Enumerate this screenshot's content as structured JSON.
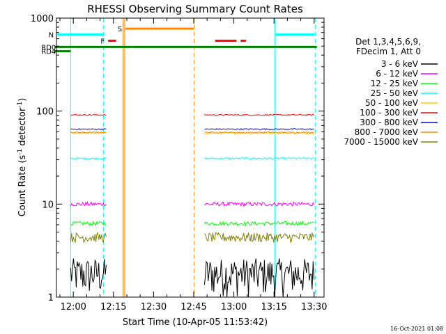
{
  "chart_data": {
    "type": "line",
    "title": "RHESSI Observing Summary Count Rates",
    "xlabel": "Start Time (10-Apr-05 11:53:42)",
    "ylabel_main": "Count Rate (s",
    "ylabel_sup": "-1",
    "ylabel_end": " detector",
    "ylabel_sup2": "-1",
    "ylabel_close": ")",
    "yscale": "log",
    "ylim": [
      1,
      1000
    ],
    "yticks": [
      {
        "v": 1,
        "label": "1"
      },
      {
        "v": 10,
        "label": "10"
      },
      {
        "v": 100,
        "label": "100"
      },
      {
        "v": 1000,
        "label": "1000"
      }
    ],
    "xlim_min": [
      -6.3,
      93.7
    ],
    "xticks": [
      {
        "t": 0,
        "label": "12:00"
      },
      {
        "t": 15,
        "label": "12:15"
      },
      {
        "t": 30,
        "label": "12:30"
      },
      {
        "t": 45,
        "label": "12:45"
      },
      {
        "t": 60,
        "label": "13:00"
      },
      {
        "t": 75,
        "label": "13:15"
      },
      {
        "t": 90,
        "label": "13:30"
      }
    ],
    "legend_title_1": "Det 1,3,4,5,6,9,",
    "legend_title_2": "FDecim 1, Att 0",
    "legend_position": "right",
    "series": [
      {
        "name": "3 - 6 keV",
        "color": "#000000",
        "level": 1.8,
        "noise": 0.45
      },
      {
        "name": "6 - 12 keV",
        "color": "#ff00ff",
        "level": 10,
        "noise": 0.05
      },
      {
        "name": "12 - 25 keV",
        "color": "#00ff00",
        "level": 6.2,
        "noise": 0.05
      },
      {
        "name": "25 - 50 keV",
        "color": "#00ffff",
        "level": 31,
        "noise": 0.02
      },
      {
        "name": "50 - 100 keV",
        "color": "#ffcc00",
        "level": 58,
        "noise": 0.02
      },
      {
        "name": "100 - 300 keV",
        "color": "#ff0000",
        "level": 91,
        "noise": 0.015
      },
      {
        "name": "300 - 800 keV",
        "color": "#0000ff",
        "level": 64,
        "noise": 0.015
      },
      {
        "name": "800 - 7000 keV",
        "color": "#ff8800",
        "level": 59,
        "noise": 0.015
      },
      {
        "name": "7000 - 15000 keV",
        "color": "#808000",
        "level": 4.4,
        "noise": 0.12
      }
    ],
    "segments": [
      {
        "from": -1,
        "to": 12.5
      },
      {
        "from": 49,
        "to": 90
      }
    ],
    "flags": [
      {
        "label": "N",
        "color": "#00ffff",
        "y": 665,
        "spans": [
          [
            -6,
            11
          ],
          [
            75.5,
            90
          ]
        ]
      },
      {
        "label": "F",
        "color": "#ff0000",
        "y": 570,
        "spans": [
          [
            13,
            16
          ],
          [
            53,
            61
          ],
          [
            62.5,
            64.5
          ]
        ]
      },
      {
        "label": "S",
        "color": "#ff8800",
        "y": 770,
        "spans": [
          [
            19.5,
            45
          ]
        ]
      },
      {
        "label": "RD0",
        "color": "#008000",
        "y": 490,
        "spans": [
          [
            -7,
            91
          ]
        ]
      },
      {
        "label": "RD4",
        "color": "#008000",
        "y": 440,
        "spans": [
          [
            -7,
            -1
          ]
        ]
      }
    ],
    "vlines": [
      {
        "t": -1,
        "color": "#00ffff",
        "style": "solid"
      },
      {
        "t": 11.3,
        "color": "#00ffff",
        "style": "dashed"
      },
      {
        "t": 18.6,
        "color": "#ff8800",
        "style": "solid"
      },
      {
        "t": 19.2,
        "color": "#ff8800",
        "style": "solid"
      },
      {
        "t": 45.2,
        "color": "#ff8800",
        "style": "dashed"
      },
      {
        "t": 75.3,
        "color": "#00ffff",
        "style": "solid"
      },
      {
        "t": 90.4,
        "color": "#00ffff",
        "style": "dashed"
      }
    ]
  },
  "footer": {
    "timestamp": "16-Oct-2021 01:08"
  }
}
